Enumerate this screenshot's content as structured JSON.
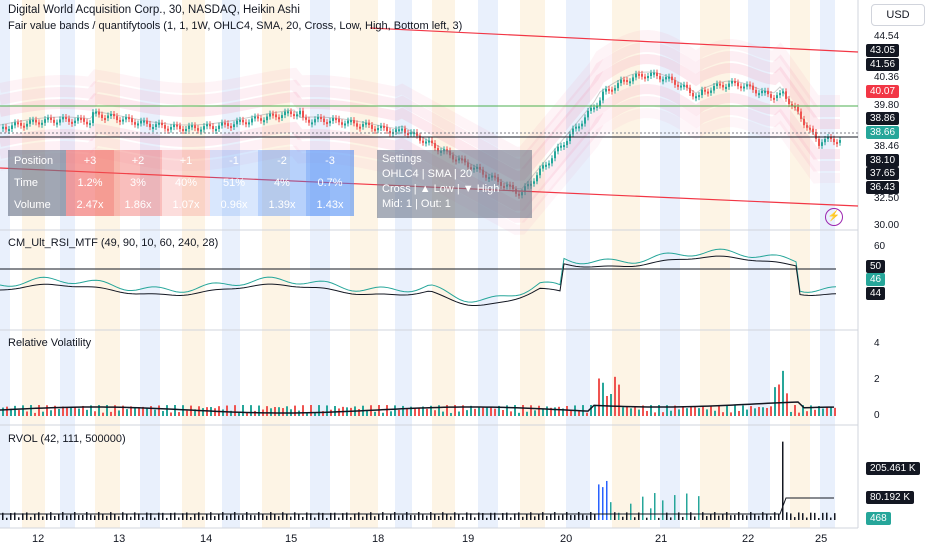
{
  "header": {
    "title": "Digital World Acquisition Corp., 30, NASDAQ, Heikin Ashi",
    "subtitle": "Fair value bands / quantifytools (1, 1, 1W, OHLC4, SMA, 20, Cross, Low, High, Bottom left, 3)"
  },
  "currency_button": "USD",
  "colors": {
    "up": "#26a69a",
    "down": "#ef5350",
    "band": "#f48fb1",
    "trendline": "#f23645",
    "hline": "#4caf50",
    "weekday_shade_a": "#e3ecfb",
    "weekday_shade_b": "#fdf1de"
  },
  "price_axis": {
    "ticks": [
      "44.54",
      "43.05",
      "41.56",
      "40.36",
      "40.07",
      "39.80",
      "38.86",
      "38.66",
      "38.46",
      "38.10",
      "37.65",
      "36.43",
      "32.50",
      "30.00"
    ],
    "highlight_current": "38.66",
    "highlight_red": "40.07"
  },
  "table": {
    "header_row": [
      "Position",
      "+3",
      "+2",
      "+1",
      "-1",
      "-2",
      "-3"
    ],
    "time_row": [
      "Time",
      "1.2%",
      "3%",
      "40%",
      "51%",
      "4%",
      "0.7%"
    ],
    "volume_row": [
      "Volume",
      "2.47x",
      "1.86x",
      "1.07x",
      "0.96x",
      "1.39x",
      "1.43x"
    ]
  },
  "settings_box": {
    "title": "Settings",
    "line1": "OHLC4 | SMA | 20",
    "line2": "Cross | ▲ Low | ▼ High",
    "line3": "Mid: 1 | Out: 1"
  },
  "rsi_pane": {
    "label": "CM_Ult_RSI_MTF (49, 90, 10, 60, 240, 28)",
    "ticks": [
      "60",
      "50",
      "46",
      "44"
    ]
  },
  "vol_pane": {
    "label": "Relative Volatility",
    "ticks": [
      "4",
      "2",
      "0"
    ]
  },
  "rvol_pane": {
    "label": "RVOL (42, 111, 500000)",
    "ticks": [
      "205.461 K",
      "80.192 K",
      "468"
    ]
  },
  "time_axis": [
    "12",
    "13",
    "14",
    "15",
    "18",
    "19",
    "20",
    "21",
    "22",
    "25"
  ],
  "bolt_icon": "⚡"
}
